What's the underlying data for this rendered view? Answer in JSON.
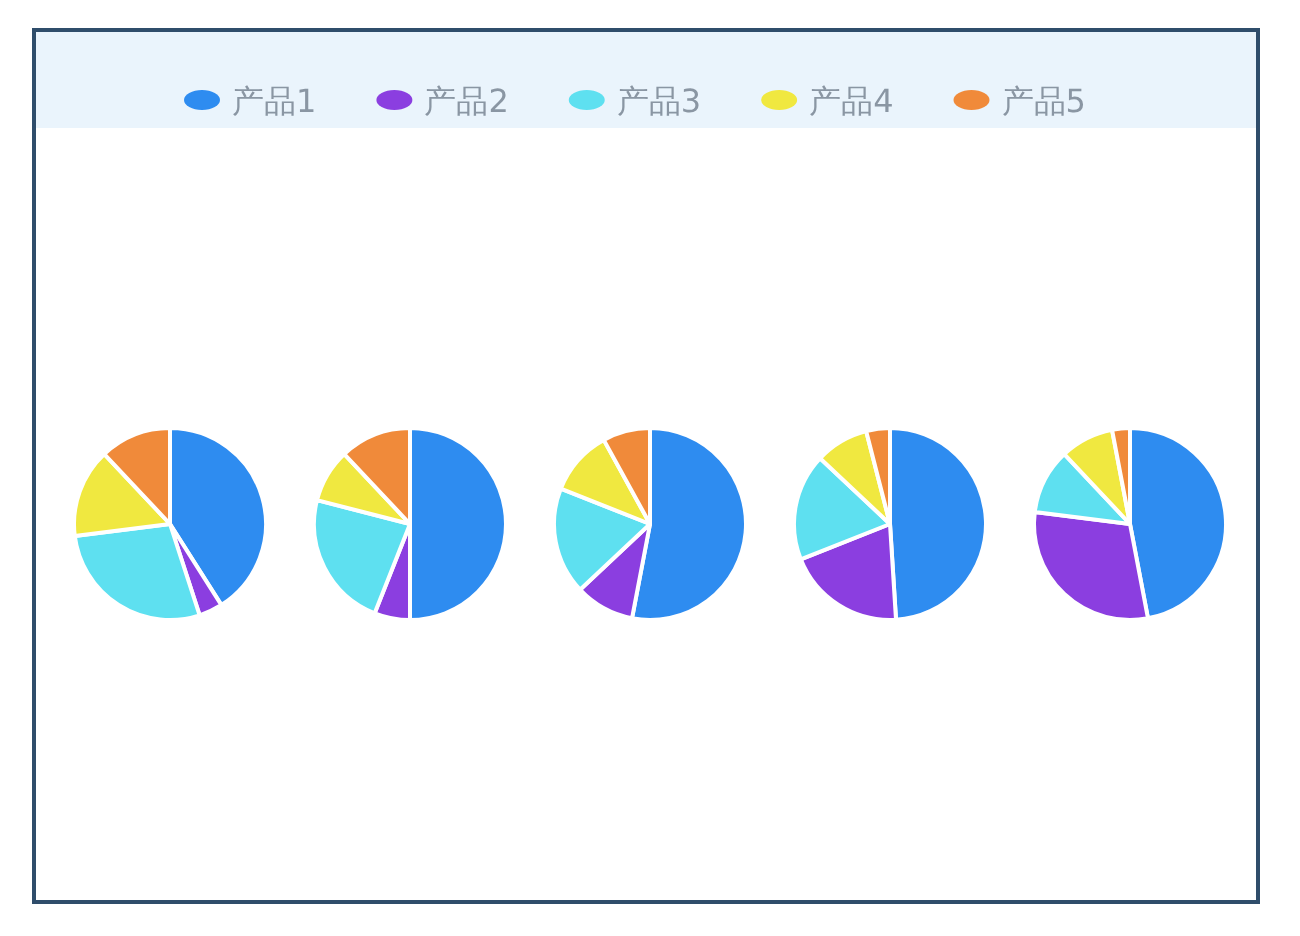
{
  "chart_data": [
    {
      "type": "pie",
      "legend": "top",
      "categories": [
        "产品1",
        "产品2",
        "产品3",
        "产品4",
        "产品5"
      ],
      "values": [
        41,
        4,
        28,
        15,
        12
      ],
      "colors": [
        "#2e8cf0",
        "#8b3ee0",
        "#5ee0f0",
        "#f0e840",
        "#f08a3a"
      ]
    },
    {
      "type": "pie",
      "categories": [
        null,
        null,
        null,
        null,
        null
      ],
      "values": [
        50,
        6,
        23,
        9,
        12
      ],
      "colors": [
        "#2e8cf0",
        "#8b3ee0",
        "#5ee0f0",
        "#f0e840",
        "#f08a3a"
      ]
    },
    {
      "type": "pie",
      "categories": [
        null,
        null,
        null,
        null,
        null
      ],
      "values": [
        53,
        10,
        18,
        11,
        8
      ],
      "colors": [
        "#2e8cf0",
        "#8b3ee0",
        "#5ee0f0",
        "#f0e840",
        "#f08a3a"
      ]
    },
    {
      "type": "pie",
      "categories": [
        null,
        null,
        null,
        null,
        null
      ],
      "values": [
        49,
        20,
        18,
        9,
        4
      ],
      "colors": [
        "#2e8cf0",
        "#8b3ee0",
        "#5ee0f0",
        "#f0e840",
        "#f08a3a"
      ]
    },
    {
      "type": "pie",
      "categories": [
        null,
        null,
        null,
        null,
        null
      ],
      "values": [
        47,
        30,
        11,
        9,
        3
      ],
      "colors": [
        "#2e8cf0",
        "#8b3ee0",
        "#5ee0f0",
        "#f0e840",
        "#f08a3a"
      ]
    }
  ]
}
